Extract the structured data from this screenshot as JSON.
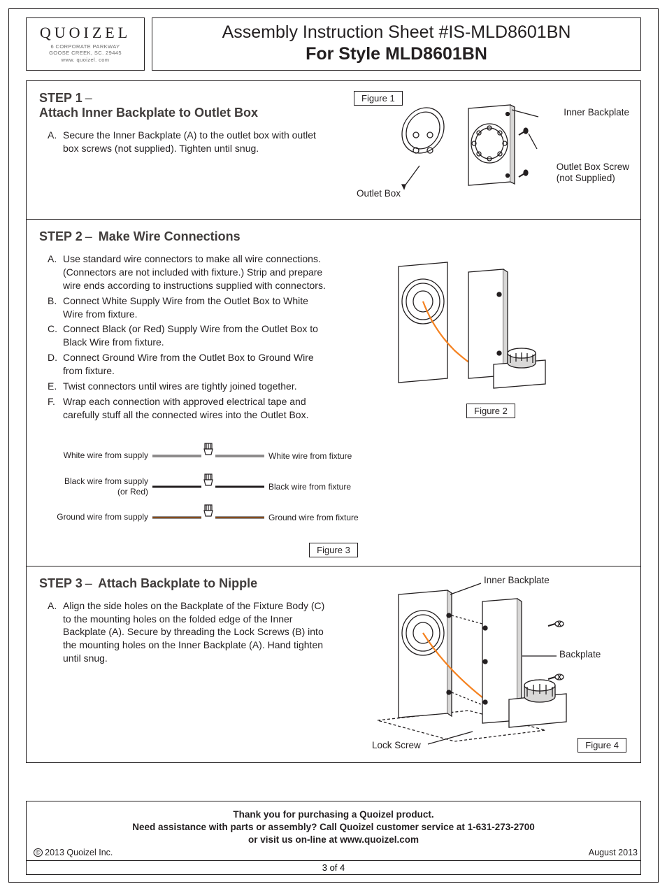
{
  "logo": {
    "brand": "QUOIZEL",
    "addr1": "6 CORPORATE PARKWAY",
    "addr2": "GOOSE CREEK, SC. 29445",
    "addr3": "www. quoizel. com"
  },
  "title": {
    "line1": "Assembly Instruction Sheet #IS-MLD8601BN",
    "line2": "For Style MLD8601BN"
  },
  "step1": {
    "heading_prefix": "STEP 1",
    "heading_title": "Attach Inner Backplate to Outlet Box",
    "item_a_letter": "A.",
    "item_a_text": "Secure the Inner Backplate (A) to the outlet box with outlet box screws (not supplied). Tighten until snug.",
    "fig_label": "Figure 1",
    "callout_inner_backplate": "Inner Backplate",
    "callout_outlet_box": "Outlet Box",
    "callout_screw1": "Outlet Box Screw",
    "callout_screw2": "(not Supplied)"
  },
  "step2": {
    "heading_prefix": "STEP 2",
    "heading_title": "Make Wire Connections",
    "items": [
      {
        "l": "A.",
        "t": "Use standard wire connectors to make all wire connections. (Connectors are not included with fixture.) Strip and prepare wire ends according to instructions supplied with connectors."
      },
      {
        "l": "B.",
        "t": "Connect White Supply Wire from the Outlet Box to White Wire from fixture."
      },
      {
        "l": "C.",
        "t": "Connect Black (or Red) Supply Wire from the Outlet Box to Black Wire from fixture."
      },
      {
        "l": "D.",
        "t": "Connect Ground Wire from the Outlet Box to Ground Wire from fixture."
      },
      {
        "l": "E.",
        "t": "Twist connectors until wires are tightly joined together."
      },
      {
        "l": "F.",
        "t": "Wrap each connection with approved electrical tape and carefully stuff all the connected wires into the Outlet Box."
      }
    ],
    "fig2_label": "Figure 2",
    "fig3_label": "Figure 3",
    "wires": [
      {
        "left": "White wire from supply",
        "right": "White wire from fixture",
        "colorL": "#f4f4f4",
        "colorR": "#f4f4f4",
        "border": "#231f20"
      },
      {
        "left": "Black wire from supply (or Red)",
        "right": "Black wire from fixture",
        "colorL": "#231f20",
        "colorR": "#231f20",
        "border": "#231f20"
      },
      {
        "left": "Ground wire from supply",
        "right": "Ground wire from fixture",
        "colorL": "#e87b1a",
        "colorR": "#e87b1a",
        "border": "#231f20"
      }
    ]
  },
  "step3": {
    "heading_prefix": "STEP 3",
    "heading_title": "Attach Backplate to Nipple",
    "item_a_letter": "A.",
    "item_a_text": "Align the side holes on the Backplate of the Fixture Body (C) to the mounting holes on the folded edge of the Inner Backplate (A). Secure by threading the Lock Screws (B) into the mounting holes on the Inner Backplate (A). Hand tighten until snug.",
    "fig4_label": "Figure 4",
    "callout_inner_backplate": "Inner Backplate",
    "callout_backplate": "Backplate",
    "callout_lockscrew": "Lock Screw"
  },
  "footer": {
    "l1": "Thank you for purchasing a Quoizel product.",
    "l2": "Need assistance with parts or assembly? Call Quoizel customer service at 1-631-273-2700",
    "l3": "or visit us on-line at www.quoizel.com",
    "copyright_symbol": "©",
    "copyright": "2013  Quoizel Inc.",
    "date": "August 2013",
    "page": "3 of 4"
  },
  "colors": {
    "stroke": "#231f20",
    "gray_fill": "#d9d8d7",
    "orange_wire": "#f58220"
  }
}
